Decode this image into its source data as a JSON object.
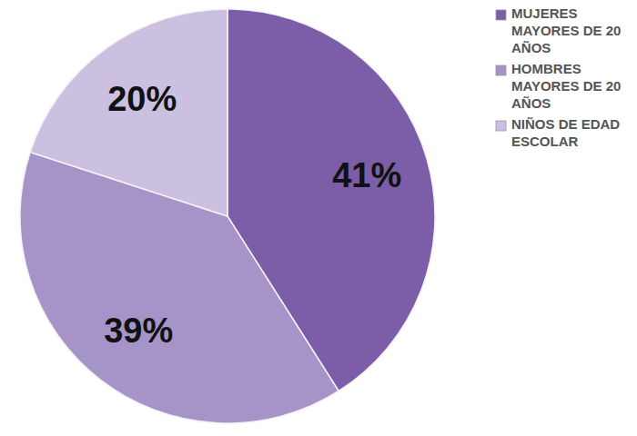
{
  "chart_data": {
    "type": "pie",
    "categories": [
      "MUJERES MAYORES DE 20 AÑOS",
      "HOMBRES MAYORES DE 20 AÑOS",
      "NIÑOS DE EDAD ESCOLAR"
    ],
    "values": [
      41,
      39,
      20
    ],
    "value_labels": [
      "41%",
      "39%",
      "20%"
    ],
    "colors": [
      "#7b5ea7",
      "#a694c9",
      "#cbc0e0"
    ],
    "data_labels": true,
    "legend": "right"
  }
}
